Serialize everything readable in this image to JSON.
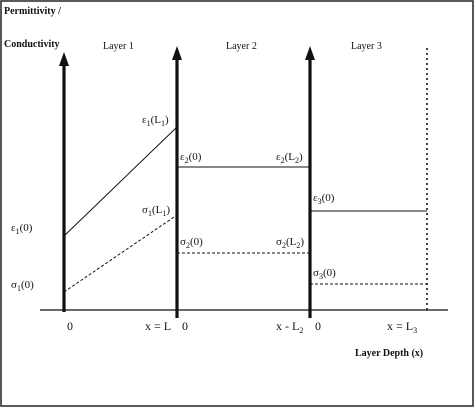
{
  "y_axis_title": [
    "Permittivity /",
    "Conductivity"
  ],
  "layers": [
    "Layer 1",
    "Layer 2",
    "Layer 3"
  ],
  "x_axis_title": "Layer Depth (x)",
  "x_ticks": [
    "0",
    "x = L",
    "0",
    "x - L",
    "0",
    "x = L"
  ],
  "x_tick_subs": [
    "",
    "",
    "",
    "2",
    "",
    "3"
  ],
  "eps_labels": {
    "e1_0": {
      "sym": "ε",
      "sub": "1",
      "arg": "(0)"
    },
    "e1_L1": {
      "sym": "ε",
      "sub": "1",
      "arg": "(L",
      "argsub": "1",
      "close": ")"
    },
    "e2_0": {
      "sym": "ε",
      "sub": "2",
      "arg": "(0)"
    },
    "e2_L2": {
      "sym": "ε",
      "sub": "2",
      "arg": "(L",
      "argsub": "2",
      "close": ")"
    },
    "e3_0": {
      "sym": "ε",
      "sub": "3",
      "arg": "(0)"
    }
  },
  "sigma_labels": {
    "s1_0": {
      "sym": "σ",
      "sub": "1",
      "arg": "(0)"
    },
    "s1_L1": {
      "sym": "σ",
      "sub": "1",
      "arg": "(L",
      "argsub": "1",
      "close": ")"
    },
    "s2_0": {
      "sym": "σ",
      "sub": "2",
      "arg": "(0)"
    },
    "s2_L2": {
      "sym": "σ",
      "sub": "2",
      "arg": "(L",
      "argsub": "2",
      "close": ")"
    },
    "s3_0": {
      "sym": "σ",
      "sub": "3",
      "arg": "(0)"
    }
  }
}
